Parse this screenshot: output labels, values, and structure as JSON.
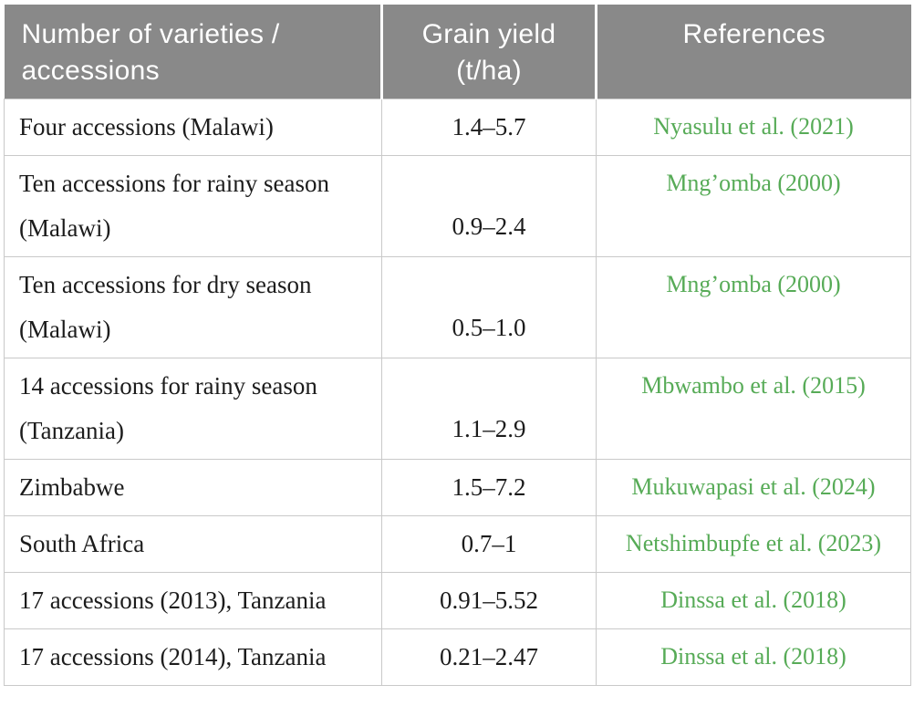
{
  "table": {
    "headers": [
      "Number of varieties /\naccessions",
      "Grain yield\n(t/ha)",
      "References"
    ],
    "rows": [
      {
        "varieties": "Four accessions (Malawi)",
        "grain_yield": "1.4–5.7",
        "reference": "Nyasulu et al. (2021)"
      },
      {
        "varieties": "Ten accessions for rainy season\n(Malawi)",
        "grain_yield": "0.9–2.4",
        "reference": "Mng’omba (2000)"
      },
      {
        "varieties": "Ten accessions for dry season\n(Malawi)",
        "grain_yield": "0.5–1.0",
        "reference": "Mng’omba (2000)"
      },
      {
        "varieties": "14 accessions for rainy season\n(Tanzania)",
        "grain_yield": "1.1–2.9",
        "reference": "Mbwambo et al. (2015)"
      },
      {
        "varieties": "Zimbabwe",
        "grain_yield": "1.5–7.2",
        "reference": "Mukuwapasi et al. (2024)"
      },
      {
        "varieties": "South Africa",
        "grain_yield": "0.7–1",
        "reference": "Netshimbupfe et al. (2023)"
      },
      {
        "varieties": "17 accessions (2013), Tanzania",
        "grain_yield": "0.91–5.52",
        "reference": "Dinssa et al. (2018)"
      },
      {
        "varieties": "17 accessions (2014), Tanzania",
        "grain_yield": "0.21–2.47",
        "reference": "Dinssa et al. (2018)"
      }
    ],
    "colors": {
      "header_bg": "#898989",
      "header_text": "#ffffff",
      "reference_green": "#57ab57",
      "body_text": "#1c1c1c",
      "border": "#c9c9c9"
    }
  }
}
